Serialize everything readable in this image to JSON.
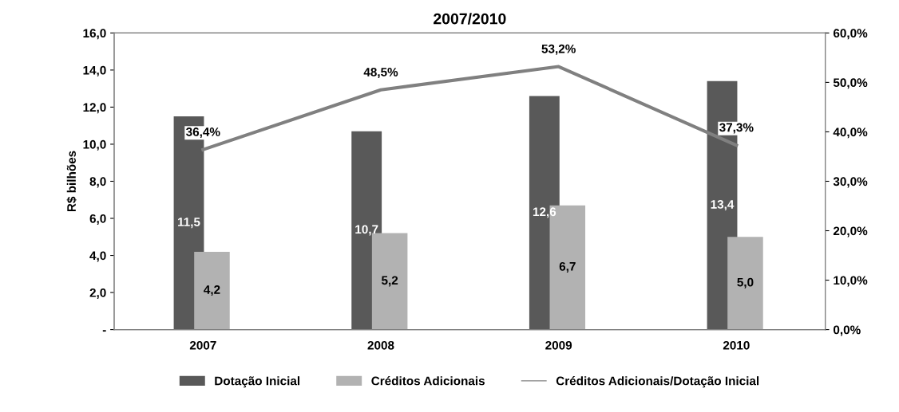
{
  "chart_data": {
    "type": "bar",
    "title": "2007/2010",
    "ylabel": "R$ bilhões",
    "categories": [
      "2007",
      "2008",
      "2009",
      "2010"
    ],
    "series": [
      {
        "name": "Dotação Inicial",
        "color": "#595959",
        "values": [
          11.5,
          10.7,
          12.6,
          13.4
        ],
        "value_labels": [
          "11,5",
          "10,7",
          "12,6",
          "13,4"
        ]
      },
      {
        "name": "Créditos Adicionais",
        "color": "#b2b2b2",
        "values": [
          4.2,
          5.2,
          6.7,
          5.0
        ],
        "value_labels": [
          "4,2",
          "5,2",
          "6,7",
          "5,0"
        ]
      },
      {
        "name": "Créditos Adicionais/Dotação Inicial",
        "type": "line",
        "axis": "y2",
        "color": "#808080",
        "values": [
          36.4,
          48.5,
          53.2,
          37.3
        ],
        "value_labels": [
          "36,4%",
          "48,5%",
          "53,2%",
          "37,3%"
        ]
      }
    ],
    "ylim": [
      0,
      16
    ],
    "yticks": [
      {
        "value": 0,
        "label": "-"
      },
      {
        "value": 2,
        "label": "2,0"
      },
      {
        "value": 4,
        "label": "4,0"
      },
      {
        "value": 6,
        "label": "6,0"
      },
      {
        "value": 8,
        "label": "8,0"
      },
      {
        "value": 10,
        "label": "10,0"
      },
      {
        "value": 12,
        "label": "12,0"
      },
      {
        "value": 14,
        "label": "14,0"
      },
      {
        "value": 16,
        "label": "16,0"
      }
    ],
    "y2lim": [
      0,
      60
    ],
    "y2ticks": [
      {
        "value": 0,
        "label": "0,0%"
      },
      {
        "value": 10,
        "label": "10,0%"
      },
      {
        "value": 20,
        "label": "20,0%"
      },
      {
        "value": 30,
        "label": "30,0%"
      },
      {
        "value": 40,
        "label": "40,0%"
      },
      {
        "value": 50,
        "label": "50,0%"
      },
      {
        "value": 60,
        "label": "60,0%"
      }
    ],
    "grid": false,
    "legend": "bottom",
    "marker": "none"
  }
}
